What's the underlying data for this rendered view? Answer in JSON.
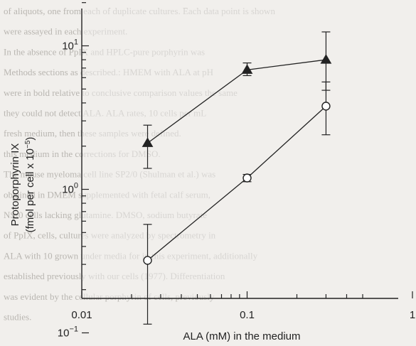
{
  "chart_data": {
    "type": "line",
    "title": "",
    "xlabel": "ALA (mΜ) in the medium",
    "ylabel": "Protoporphyrin IX",
    "ylabel_line2": "(fmol per cell x 10",
    "ylabel_exp": "−5",
    "ylabel_close": ")",
    "x_scale": "log",
    "y_scale": "log",
    "xlim": [
      0.01,
      0.5
    ],
    "ylim": [
      0.1,
      20
    ],
    "x_ticks": [
      {
        "value": 0.01,
        "label": "0.01"
      },
      {
        "value": 0.1,
        "label": "0.1"
      },
      {
        "value": 1,
        "label": "1"
      }
    ],
    "y_ticks": [
      {
        "value": 0.1,
        "base": "10",
        "exp": "−1"
      },
      {
        "value": 1,
        "base": "10",
        "exp": "0"
      },
      {
        "value": 10,
        "base": "10",
        "exp": "1"
      }
    ],
    "series": [
      {
        "marker": "triangle-filled",
        "x": [
          0.025,
          0.1,
          0.3
        ],
        "y": [
          2.1,
          6.8,
          8.0
        ],
        "err_low": [
          1.4,
          6.2,
          4.9
        ],
        "err_high": [
          2.8,
          7.6,
          12.5
        ]
      },
      {
        "marker": "circle-open",
        "x": [
          0.025,
          0.1,
          0.3
        ],
        "y": [
          0.32,
          1.2,
          3.8
        ],
        "err_low": [
          0.115,
          1.13,
          2.4
        ],
        "err_high": [
          0.57,
          1.27,
          5.6
        ]
      }
    ],
    "background_text": [
      "of aliquots, one from each of duplicate cultures. Each data point is shown",
      "were assayed in each experiment.",
      "In the absence of PpIX and HPLC-pure porphyrin was",
      "Methods sections as described.: HMEM with ALA at pH",
      "were in bold relative to conclusive comparison values the same",
      "they could not detect ALA. ALA rates, 10 cells per mL",
      "fresh medium, then these samples were defined.",
      "this medium in the corrections for DMSO.",
      "The mouse myeloma cell line SP2/0 (Shulman et al.) was",
      "obtained in DMEM supplemented with fetal calf serum,",
      "NS-0 cells lacking glutamine. DMSO, sodium butyrate",
      "of PpIX, cells, cultures were analyzed by spectrometry in",
      "ALA with 10 grown under media for in this experiment, additionally",
      "established previously with our cells (1977). Differentiation",
      "was evident by the cellular porphyrin of cells, previously",
      "studies."
    ]
  }
}
